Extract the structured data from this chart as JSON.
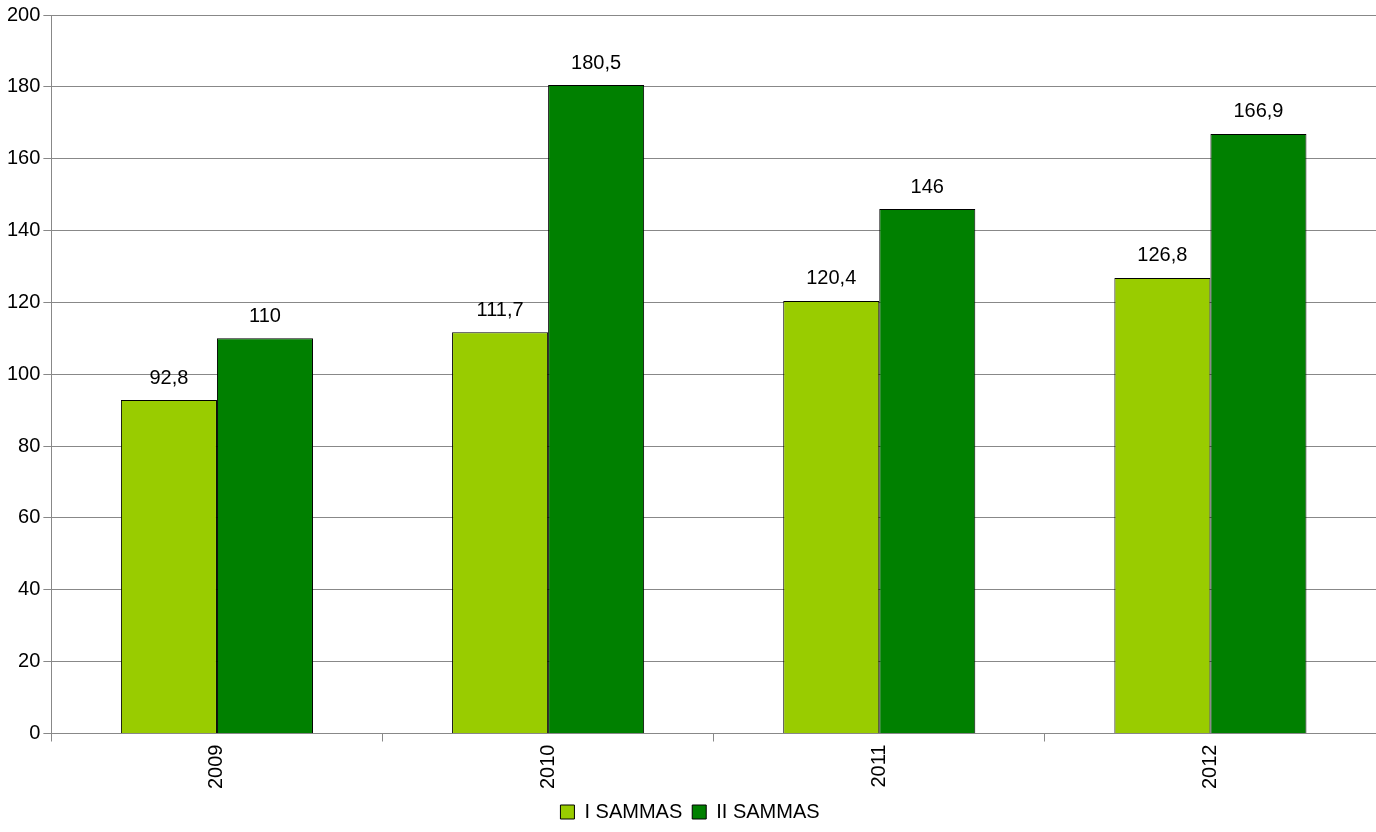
{
  "chart_data": {
    "type": "bar",
    "categories": [
      "2009",
      "2010",
      "2011",
      "2012"
    ],
    "series": [
      {
        "name": "I SAMMAS",
        "color": "#99cc00",
        "values": [
          92.8,
          111.7,
          120.4,
          126.8
        ],
        "value_labels": [
          "92,8",
          "111,7",
          "120,4",
          "126,8"
        ]
      },
      {
        "name": "II SAMMAS",
        "color": "#008000",
        "values": [
          110,
          180.5,
          146,
          166.9
        ],
        "value_labels": [
          "110",
          "180,5",
          "146",
          "166,9"
        ]
      }
    ],
    "ylim": [
      0,
      200
    ],
    "yticks": [
      0,
      20,
      40,
      60,
      80,
      100,
      120,
      140,
      160,
      180,
      200
    ],
    "grid": "y",
    "legend": "bottom"
  }
}
